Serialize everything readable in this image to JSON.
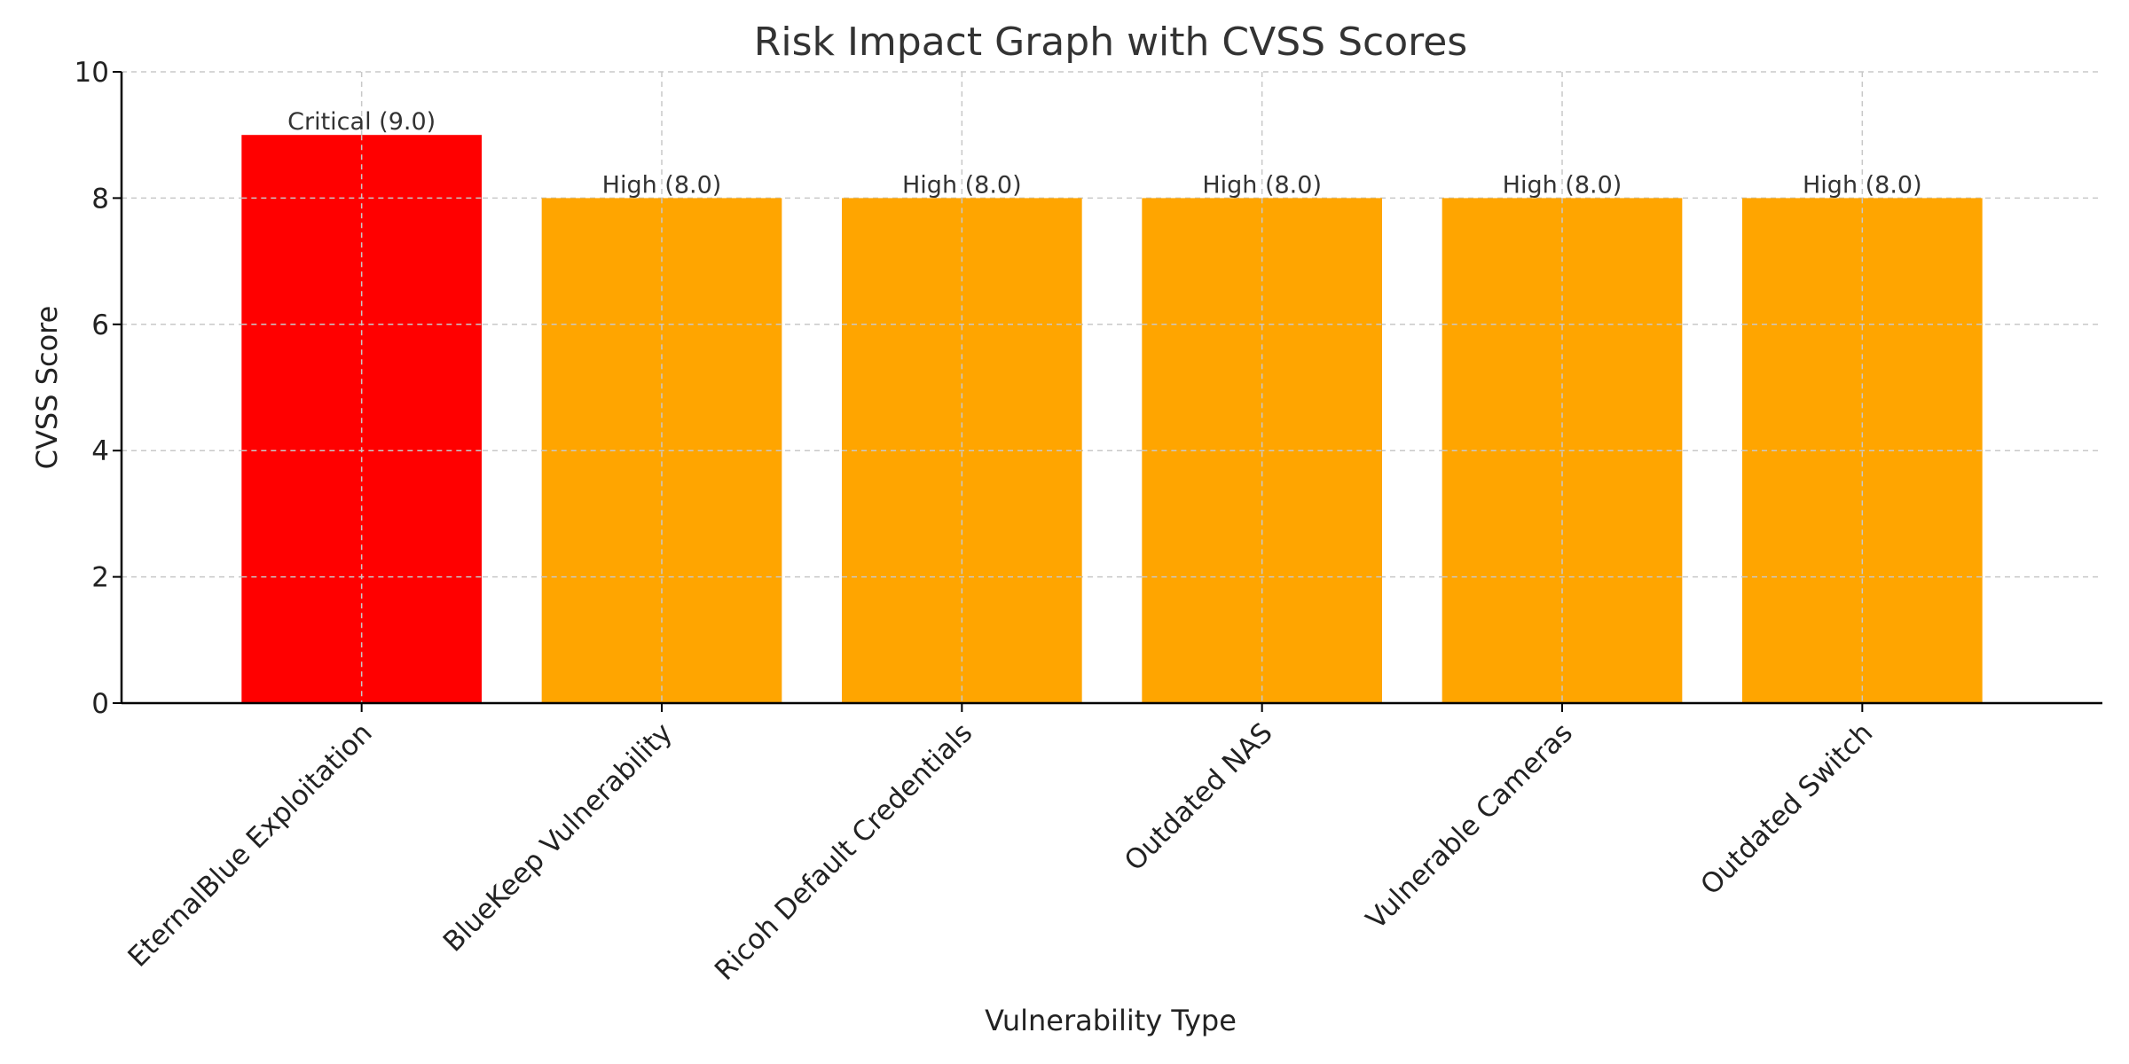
{
  "chart_data": {
    "type": "bar",
    "title": "Risk Impact Graph with CVSS Scores",
    "xlabel": "Vulnerability Type",
    "ylabel": "CVSS Score",
    "ylim": [
      0,
      10
    ],
    "yticks": [
      0,
      2,
      4,
      6,
      8,
      10
    ],
    "grid": true,
    "categories": [
      "EternalBlue Exploitation",
      "BlueKeep Vulnerability",
      "Ricoh Default Credentials",
      "Outdated NAS",
      "Vulnerable Cameras",
      "Outdated Switch"
    ],
    "values": [
      9.0,
      8.0,
      8.0,
      8.0,
      8.0,
      8.0
    ],
    "data_labels": [
      "Critical (9.0)",
      "High (8.0)",
      "High (8.0)",
      "High (8.0)",
      "High (8.0)",
      "High (8.0)"
    ],
    "colors": [
      "#ff0000",
      "#ffa500",
      "#ffa500",
      "#ffa500",
      "#ffa500",
      "#ffa500"
    ]
  }
}
